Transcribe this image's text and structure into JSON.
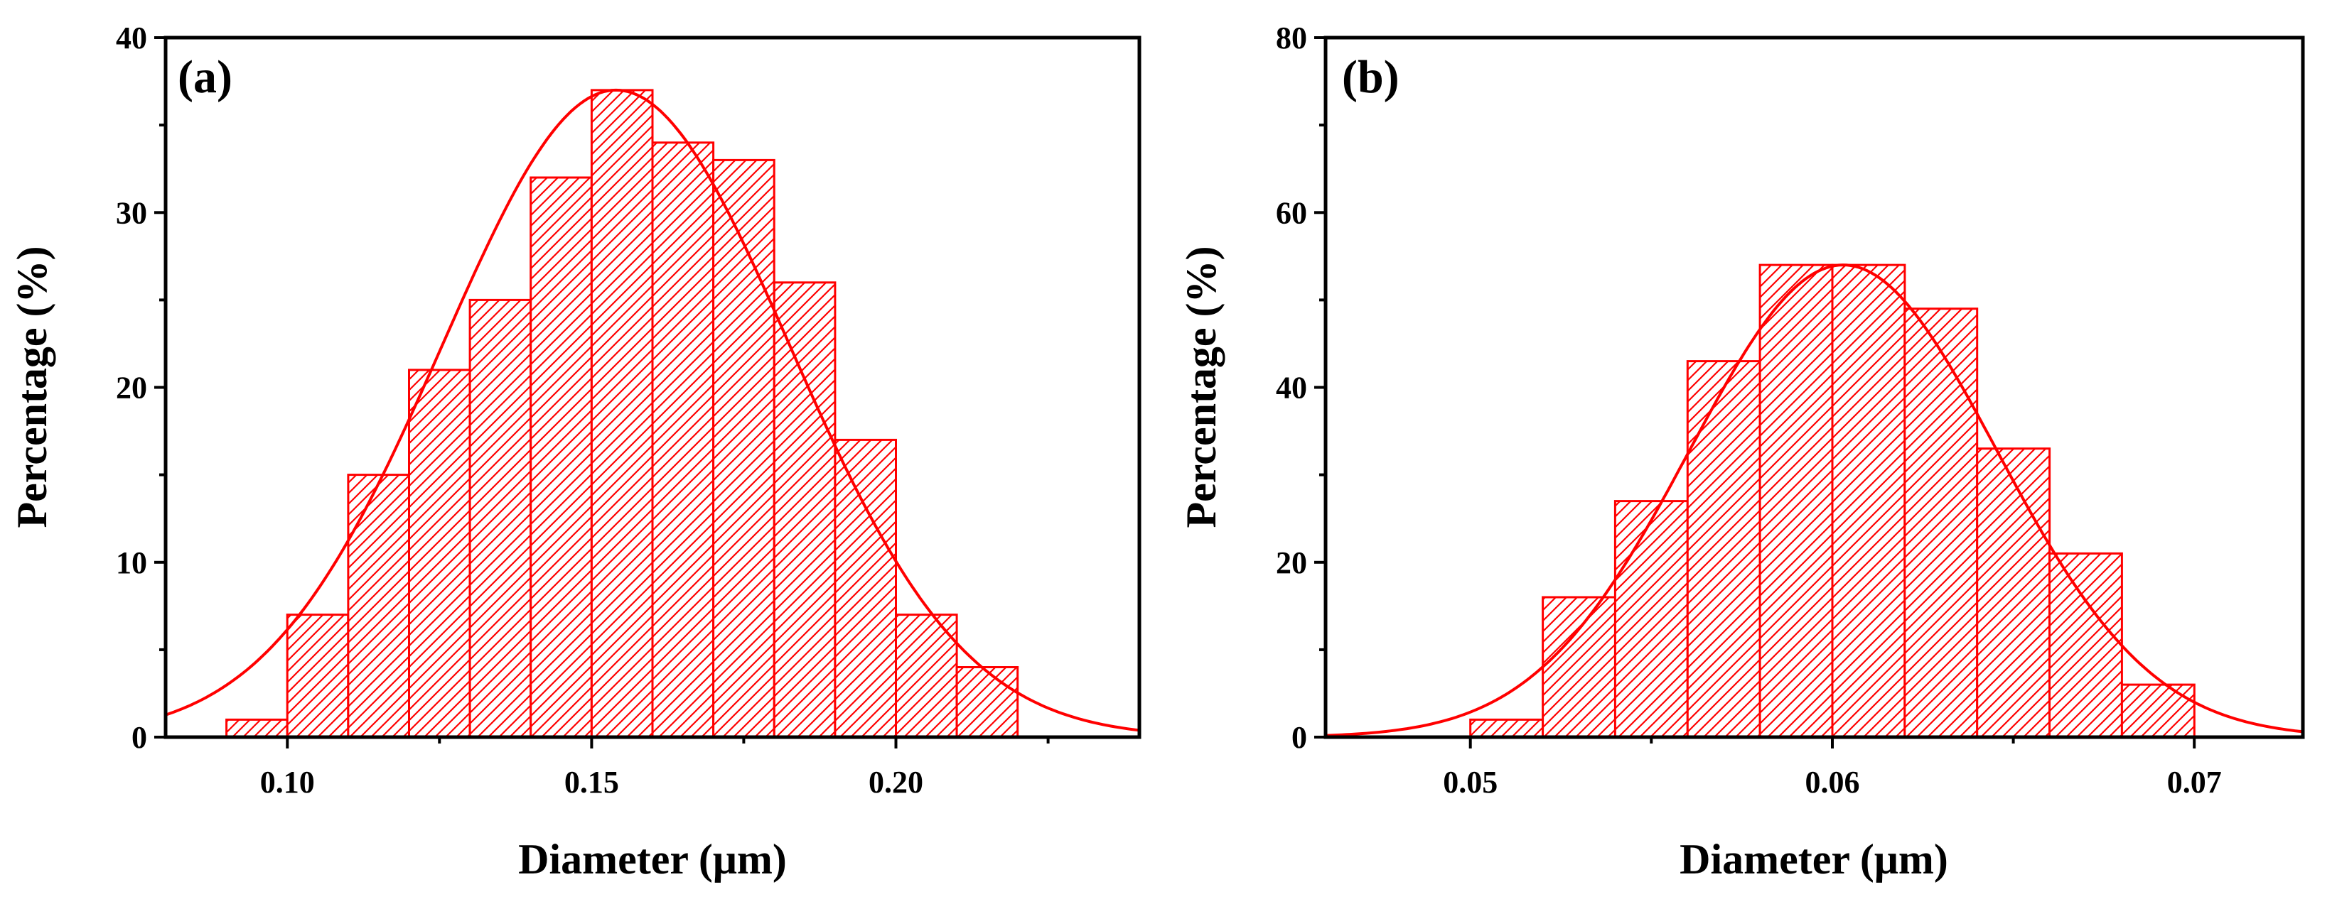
{
  "chart_data": [
    {
      "type": "bar",
      "panel_label": "(a)",
      "xlabel": "Diameter (μm)",
      "ylabel": "Percentage (%)",
      "xlim": [
        0.08,
        0.24
      ],
      "ylim": [
        0,
        40
      ],
      "xticks": [
        0.1,
        0.15,
        0.2
      ],
      "xtick_labels": [
        "0.10",
        "0.15",
        "0.20"
      ],
      "yticks": [
        0,
        10,
        20,
        30,
        40
      ],
      "ytick_labels": [
        "0",
        "10",
        "20",
        "30",
        "40"
      ],
      "bin_width": 0.01,
      "bin_centers": [
        0.095,
        0.105,
        0.115,
        0.125,
        0.135,
        0.145,
        0.155,
        0.165,
        0.175,
        0.185,
        0.195,
        0.205,
        0.215
      ],
      "values": [
        1,
        7,
        15,
        21,
        25,
        32,
        37,
        34,
        33,
        26,
        17,
        7,
        4
      ],
      "fit": {
        "type": "gaussian",
        "amplitude": 37,
        "center": 0.154,
        "sigma": 0.0285
      }
    },
    {
      "type": "bar",
      "panel_label": "(b)",
      "xlabel": "Diameter (μm)",
      "ylabel": "Percentage (%)",
      "xlim": [
        0.046,
        0.073
      ],
      "ylim": [
        0,
        80
      ],
      "xticks": [
        0.05,
        0.06,
        0.07
      ],
      "xtick_labels": [
        "0.05",
        "0.06",
        "0.07"
      ],
      "yticks": [
        0,
        20,
        40,
        60,
        80
      ],
      "ytick_labels": [
        "0",
        "20",
        "40",
        "60",
        "80"
      ],
      "bin_width": 0.002,
      "bin_centers": [
        0.051,
        0.053,
        0.055,
        0.057,
        0.059,
        0.061,
        0.063,
        0.065,
        0.067,
        0.069
      ],
      "values": [
        2,
        16,
        27,
        43,
        54,
        54,
        49,
        33,
        21,
        6
      ],
      "fit": {
        "type": "gaussian",
        "amplitude": 54,
        "center": 0.0603,
        "sigma": 0.00425
      }
    }
  ],
  "colors": {
    "bar": "#ff0000",
    "fit": "#ff0000",
    "axis": "#000000"
  }
}
